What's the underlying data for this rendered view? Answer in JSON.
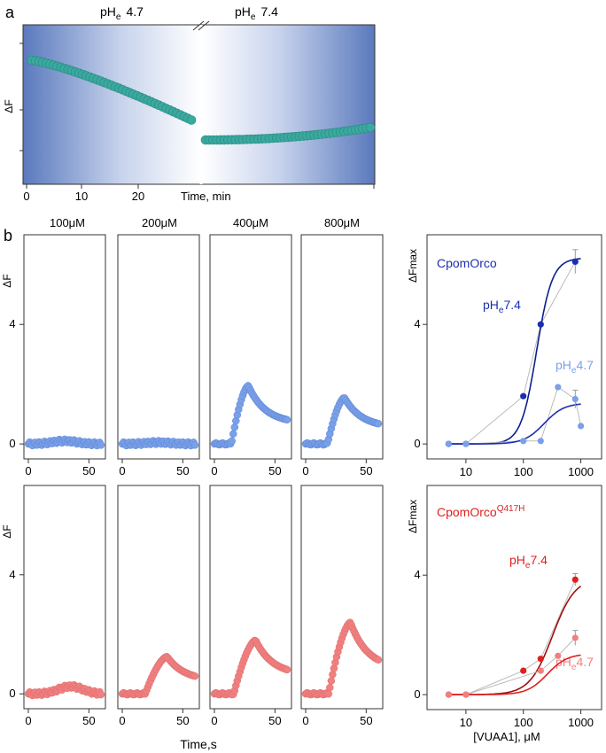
{
  "panel_a": {
    "label": "a",
    "ylabel": "ΔF",
    "xlabel": "Time, min",
    "ph_left": "4.7",
    "ph_right": "7.4",
    "ph_prefix": "pH",
    "ph_sub": "e",
    "x_ticks": [
      "0",
      "10",
      "20"
    ]
  },
  "panel_b": {
    "label": "b",
    "concentrations": [
      "100μM",
      "200μM",
      "400μM",
      "800μM"
    ],
    "ylabel": "ΔF",
    "xlabel": "Time,s",
    "y_ticks": [
      "0",
      "4"
    ],
    "x_ticks": [
      "0",
      "50"
    ]
  },
  "dose_top": {
    "title": "CpomOrco",
    "ylabel": "ΔFmax",
    "label_74": "7.4",
    "label_47": "4.7",
    "y_ticks": [
      "0",
      "4"
    ],
    "x_ticks": [
      "10",
      "100",
      "1000"
    ]
  },
  "dose_bottom": {
    "title": "CpomOrco",
    "title_sup": "Q417H",
    "ylabel": "ΔFmax",
    "label_74": "7.4",
    "label_47": "4.7",
    "y_ticks": [
      "0",
      "4"
    ],
    "x_ticks": [
      "10",
      "100",
      "1000"
    ],
    "xlabel": "[VUAA1], μM"
  },
  "colors": {
    "teal": "#3aa99f",
    "dark_blue": "#1c2fb0",
    "light_blue": "#7aa0e8",
    "red": "#e02020",
    "dark_red": "#a01010",
    "salmon": "#f08080",
    "gradient_blue": "#5a79bd"
  },
  "chart_data": [
    {
      "type": "scatter",
      "name": "panel-a",
      "xlabel": "Time, min",
      "ylabel": "ΔF",
      "segments": [
        {
          "condition": "pHe 4.7",
          "x_start": 0,
          "x_end": 29,
          "n": 45,
          "y_start": 1.0,
          "y_end": 0.52
        },
        {
          "condition": "pHe 7.4",
          "x_start": 31,
          "x_end": 60,
          "n": 45,
          "y_start": 0.36,
          "y_end": 0.46
        }
      ]
    },
    {
      "type": "line",
      "name": "blue-traces",
      "xlabel": "Time,s",
      "ylabel": "ΔF",
      "ylim": [
        -0.5,
        7
      ],
      "series": [
        {
          "name": "100μM",
          "peak": 0.1,
          "peak_t": 30
        },
        {
          "name": "200μM",
          "peak": 0.05,
          "peak_t": 30
        },
        {
          "name": "400μM",
          "peak": 1.95,
          "peak_t": 28
        },
        {
          "name": "800μM",
          "peak": 1.55,
          "peak_t": 32
        }
      ]
    },
    {
      "type": "line",
      "name": "red-traces",
      "xlabel": "Time,s",
      "ylabel": "ΔF",
      "ylim": [
        -0.5,
        7
      ],
      "series": [
        {
          "name": "100μM",
          "peak": 0.25,
          "peak_t": 35
        },
        {
          "name": "200μM",
          "peak": 1.25,
          "peak_t": 37
        },
        {
          "name": "400μM",
          "peak": 1.8,
          "peak_t": 34
        },
        {
          "name": "800μM",
          "peak": 2.4,
          "peak_t": 37
        }
      ]
    },
    {
      "type": "scatter",
      "name": "dose-response-CpomOrco",
      "xlabel": "[VUAA1], μM",
      "ylabel": "ΔFmax",
      "ylim": [
        -0.5,
        7
      ],
      "xscale": "log",
      "series": [
        {
          "name": "pHe7.4",
          "x": [
            5,
            10,
            100,
            200,
            800
          ],
          "y": [
            0,
            0,
            1.6,
            4.0,
            6.1
          ],
          "err": [
            0,
            0,
            0,
            0,
            0.4
          ]
        },
        {
          "name": "pHe4.7",
          "x": [
            5,
            10,
            100,
            200,
            400,
            800,
            1000
          ],
          "y": [
            0,
            0,
            0.1,
            0.1,
            1.9,
            1.5,
            0.6
          ],
          "err": [
            0,
            0,
            0,
            0,
            0,
            0.3,
            0
          ]
        }
      ]
    },
    {
      "type": "scatter",
      "name": "dose-response-CpomOrcoQ417H",
      "xlabel": "[VUAA1], μM",
      "ylabel": "ΔFmax",
      "ylim": [
        -0.5,
        7
      ],
      "xscale": "log",
      "series": [
        {
          "name": "pHe7.4",
          "x": [
            5,
            10,
            100,
            200,
            800
          ],
          "y": [
            0,
            0,
            0.8,
            1.2,
            3.85
          ],
          "err": [
            0,
            0,
            0,
            0,
            0.2
          ]
        },
        {
          "name": "pHe4.7",
          "x": [
            5,
            10,
            200,
            400,
            800
          ],
          "y": [
            0,
            0,
            0.8,
            1.3,
            1.9
          ],
          "err": [
            0,
            0,
            0,
            0,
            0.25
          ]
        }
      ]
    }
  ]
}
